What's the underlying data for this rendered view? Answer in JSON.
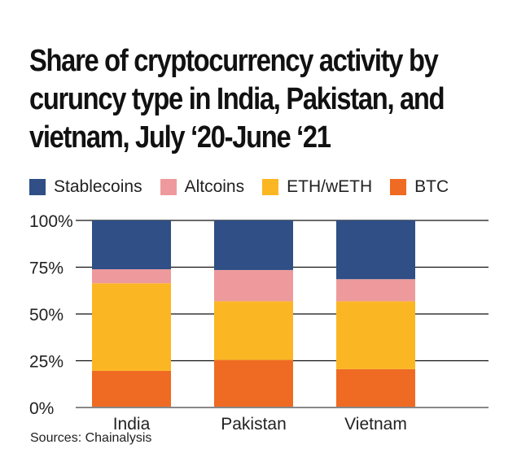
{
  "title_lines": [
    "Share of cryptocurrency activity by",
    "curuncy type in India, Pakistan, and",
    "vietnam, July  ‘20-June ‘21"
  ],
  "source": "Sources: Chainalysis",
  "chart_data": {
    "type": "bar",
    "stacked": true,
    "title": "Share of cryptocurrency activity by curuncy type in India, Pakistan, and vietnam, July  ‘20-June ‘21",
    "categories": [
      "India",
      "Pakistan",
      "Vietnam"
    ],
    "series": [
      {
        "name": "BTC",
        "color": "#ef6a22",
        "values": [
          19.6,
          25.4,
          20.5
        ]
      },
      {
        "name": "ETH/wETH",
        "color": "#fbb624",
        "values": [
          46.8,
          31.4,
          36.3
        ]
      },
      {
        "name": "Altcoins",
        "color": "#ee9a9c",
        "values": [
          7.5,
          16.7,
          11.8
        ]
      },
      {
        "name": "Stablecoins",
        "color": "#2f4f86",
        "values": [
          26.1,
          26.5,
          31.4
        ]
      }
    ],
    "legend_order": [
      "Stablecoins",
      "Altcoins",
      "ETH/wETH",
      "BTC"
    ],
    "yticks": [
      "0%",
      "25%",
      "50%",
      "75%",
      "100%"
    ],
    "ylim": [
      0,
      100
    ],
    "xlabel": "",
    "ylabel": "",
    "grid": true,
    "legend_position": "top-left"
  }
}
